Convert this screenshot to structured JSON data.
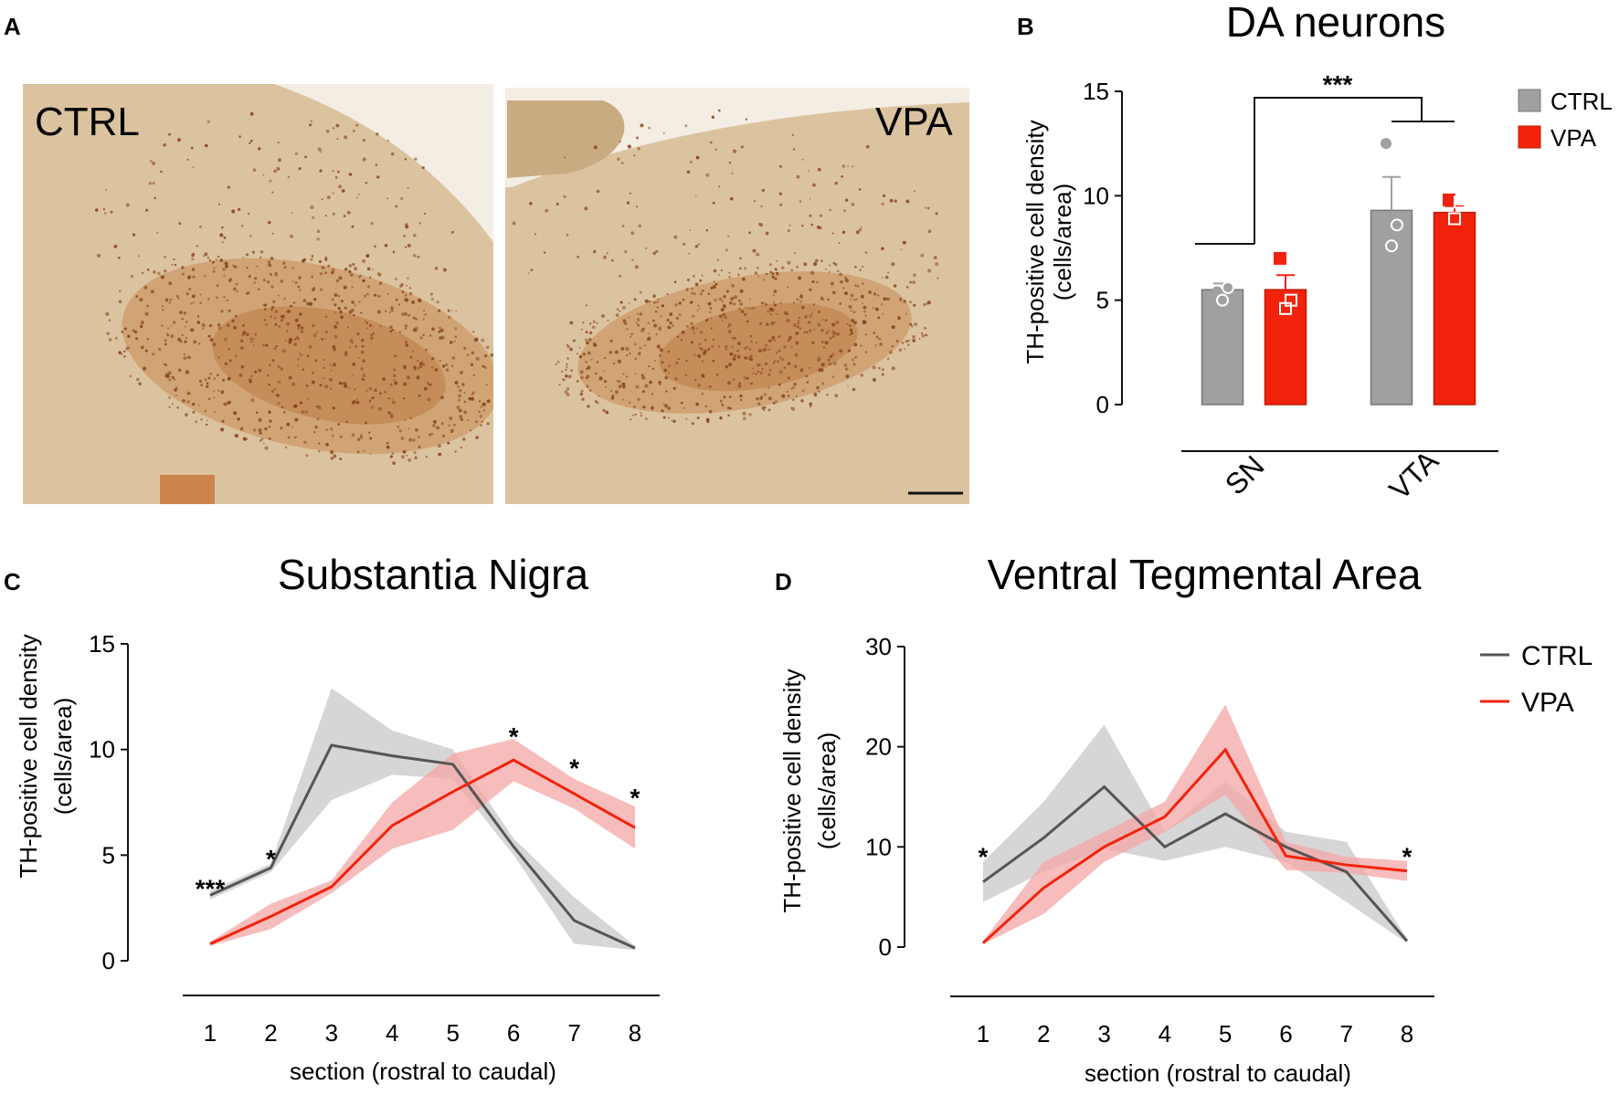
{
  "panels": {
    "a": {
      "letter": "A",
      "images": [
        {
          "label": "CTRL",
          "tissue": "#dcc3a0",
          "stain": "#8b4a22"
        },
        {
          "label": "VPA",
          "tissue": "#dcc3a0",
          "stain": "#8b4a22"
        }
      ]
    },
    "b": {
      "letter": "B"
    },
    "c": {
      "letter": "C"
    },
    "d": {
      "letter": "D"
    }
  },
  "colors": {
    "ctrl": "#a0a0a0",
    "ctrl_line": "#555555",
    "vpa": "#f2230c",
    "ctrl_band": "#c8c8c8",
    "vpa_band": "#f4a5a5"
  },
  "chart_data": [
    {
      "id": "b",
      "type": "bar",
      "title": "DA neurons",
      "ylabel_line1": "TH-positive cell density",
      "ylabel_line2": "(cells/area)",
      "ylim": [
        0,
        15
      ],
      "yticks": [
        0,
        5,
        10,
        15
      ],
      "categories": [
        "SN",
        "VTA"
      ],
      "series": [
        {
          "name": "CTRL",
          "values": [
            5.5,
            9.3
          ],
          "sem": [
            0.3,
            1.6
          ],
          "points": [
            [
              5.4,
              5.6,
              5.0
            ],
            [
              12.5,
              8.6,
              7.6
            ]
          ]
        },
        {
          "name": "VPA",
          "values": [
            5.5,
            9.2
          ],
          "sem": [
            0.7,
            0.3
          ],
          "points": [
            [
              7.0,
              5.0,
              4.6
            ],
            [
              9.8,
              9.7,
              8.9
            ]
          ]
        }
      ],
      "significance": "***"
    },
    {
      "id": "c",
      "type": "line",
      "title": "Substantia Nigra",
      "ylabel_line1": "TH-positive  cell density",
      "ylabel_line2": "(cells/area)",
      "xlabel": "section (rostral to caudal)",
      "x": [
        1,
        2,
        3,
        4,
        5,
        6,
        7,
        8
      ],
      "ylim": [
        0,
        15
      ],
      "yticks": [
        0,
        5,
        10,
        15
      ],
      "series": [
        {
          "name": "CTRL",
          "values": [
            3.1,
            4.4,
            10.2,
            9.7,
            9.3,
            5.4,
            1.9,
            0.6
          ],
          "upper": [
            3.3,
            4.6,
            12.9,
            10.9,
            10.0,
            5.8,
            3.0,
            0.7
          ],
          "lower": [
            2.9,
            4.2,
            7.6,
            8.8,
            8.6,
            5.0,
            0.8,
            0.5
          ]
        },
        {
          "name": "VPA",
          "values": [
            0.8,
            2.1,
            3.5,
            6.4,
            8.0,
            9.5,
            7.9,
            6.3
          ],
          "upper": [
            0.9,
            2.7,
            3.8,
            7.5,
            9.8,
            10.5,
            8.6,
            7.3
          ],
          "lower": [
            0.7,
            1.5,
            3.2,
            5.3,
            6.2,
            8.5,
            7.2,
            5.3
          ]
        }
      ],
      "stars": [
        {
          "x": 1,
          "y": 3.7,
          "text": "***"
        },
        {
          "x": 2,
          "y": 5.1,
          "text": "*"
        },
        {
          "x": 6,
          "y": 10.9,
          "text": "*"
        },
        {
          "x": 7,
          "y": 9.4,
          "text": "*"
        },
        {
          "x": 8,
          "y": 8.0,
          "text": "*"
        }
      ]
    },
    {
      "id": "d",
      "type": "line",
      "title": "Ventral Tegmental Area",
      "ylabel_line1": "TH-positive  cell density",
      "ylabel_line2": "(cells/area)",
      "xlabel": "section (rostral to caudal)",
      "x": [
        1,
        2,
        3,
        4,
        5,
        6,
        7,
        8
      ],
      "ylim": [
        0,
        30
      ],
      "yticks": [
        0,
        10,
        20,
        30
      ],
      "series": [
        {
          "name": "CTRL",
          "values": [
            6.5,
            10.9,
            16.0,
            10.0,
            13.3,
            10.0,
            7.5,
            0.6
          ],
          "upper": [
            8.5,
            14.5,
            22.2,
            11.5,
            16.5,
            11.5,
            10.5,
            0.8
          ],
          "lower": [
            4.5,
            7.5,
            9.8,
            8.6,
            10.0,
            8.5,
            4.5,
            0.4
          ]
        },
        {
          "name": "VPA",
          "values": [
            0.4,
            5.9,
            10.0,
            13.0,
            19.7,
            9.1,
            8.2,
            7.6
          ],
          "upper": [
            0.6,
            8.5,
            11.5,
            14.5,
            24.2,
            10.5,
            9.0,
            8.6
          ],
          "lower": [
            0.3,
            3.3,
            8.5,
            11.5,
            15.2,
            7.7,
            7.4,
            6.6
          ]
        }
      ],
      "legend": [
        "CTRL",
        "VPA"
      ],
      "stars": [
        {
          "x": 1,
          "y": 9.6,
          "text": "*"
        },
        {
          "x": 8,
          "y": 9.6,
          "text": "*"
        }
      ]
    }
  ]
}
